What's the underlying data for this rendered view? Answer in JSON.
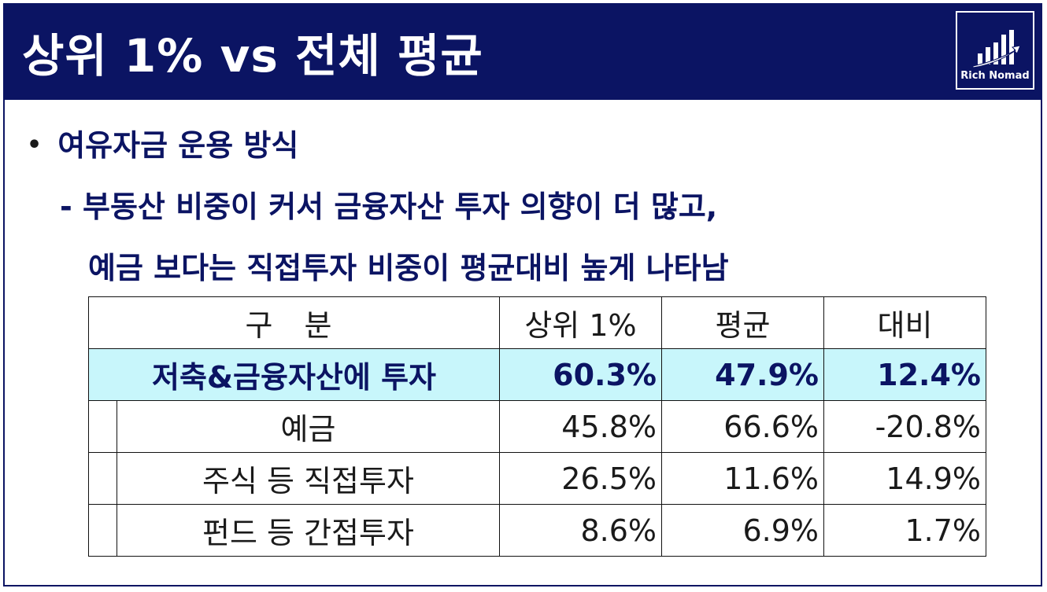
{
  "header": {
    "title": "상위 1% vs 전체 평균",
    "logo_text": "Rich Nomad",
    "logo_icon": "rising-chart-icon",
    "bg_color": "#0b1463"
  },
  "content": {
    "bullet": "여유자금 운용 방식",
    "sub_line_1": "- 부동산 비중이 커서 금융자산 투자 의향이 더 많고,",
    "sub_line_2": "예금 보다는 직접투자 비중이 평균대비 높게 나타남"
  },
  "table": {
    "headers": [
      "구 분",
      "상위 1%",
      "평균",
      "대비"
    ],
    "highlight_row": {
      "label": "저축&금융자산에 투자",
      "values": [
        "60.3%",
        "47.9%",
        "12.4%"
      ]
    },
    "rows": [
      {
        "label": "예금",
        "values": [
          "45.8%",
          "66.6%",
          "-20.8%"
        ]
      },
      {
        "label": "주식 등 직접투자",
        "values": [
          "26.5%",
          "11.6%",
          "14.9%"
        ]
      },
      {
        "label": "펀드 등 간접투자",
        "values": [
          "8.6%",
          "6.9%",
          "1.7%"
        ]
      }
    ],
    "highlight_color": "#c8f6fb",
    "negative_color": "#e52ab8"
  }
}
